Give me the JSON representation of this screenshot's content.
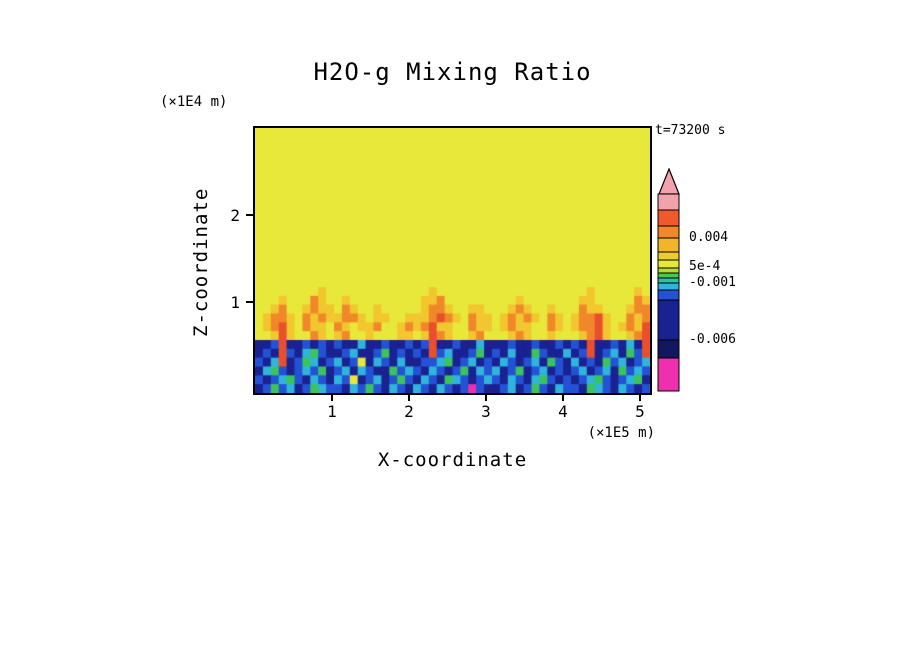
{
  "title": "H2O-g Mixing Ratio",
  "time_label": "t=73200 s",
  "axes": {
    "x_label": "X-coordinate",
    "x_unit": "(×1E5 m)",
    "x_ticks": [
      "1",
      "2",
      "3",
      "4",
      "5"
    ],
    "z_label": "Z-coordinate",
    "z_unit": "(×1E4 m)",
    "z_ticks": [
      "2",
      "1"
    ]
  },
  "chart_data": {
    "type": "heatmap",
    "title": "H2O-g Mixing Ratio",
    "annotation": "t=73200 s",
    "value_name": "H2O-g mixing ratio anomaly",
    "x": {
      "label": "X-coordinate",
      "unit": "1E5 m",
      "range": [
        0,
        5.1
      ],
      "ticks": [
        1,
        2,
        3,
        4,
        5
      ]
    },
    "z": {
      "label": "Z-coordinate",
      "unit": "1E4 m",
      "range": [
        0,
        3.0
      ],
      "ticks": [
        1,
        2
      ]
    },
    "palette": {
      "Y": "#e8e83a",
      "D": "#f2c62e",
      "O": "#f0882a",
      "R": "#ea4f2c",
      "N": "#1a2191",
      "B": "#2353d4",
      "C": "#2fb4dc",
      "G": "#3cc45c",
      "M": "#ee2fae"
    },
    "palette_values_approx": {
      "Y": "5e-4",
      "D": "1e-3",
      "O": "0.003",
      "R": "0.005",
      "N": "-0.004",
      "B": "-0.002",
      "C": "-0.001",
      "G": "-5e-4",
      "M": "-0.008"
    },
    "grid_note": "rows top-to-bottom (z=3.0 to 0), each row = 5 chunks of 10 chars = 50 columns (x=0 to 5.1); chars key palette",
    "grid_rows": [
      [
        "YYYYYYYYYY",
        "YYYYYYYYYY",
        "YYYYYYYYYY",
        "YYYYYYYYYY",
        "YYYYYYYYYY"
      ],
      [
        "YYYYYYYYYY",
        "YYYYYYYYYY",
        "YYYYYYYYYY",
        "YYYYYYYYYY",
        "YYYYYYYYYY"
      ],
      [
        "YYYYYYYYYY",
        "YYYYYYYYYY",
        "YYYYYYYYYY",
        "YYYYYYYYYY",
        "YYYYYYYYYY"
      ],
      [
        "YYYYYYYYYY",
        "YYYYYYYYYY",
        "YYYYYYYYYY",
        "YYYYYYYYYY",
        "YYYYYYYYYY"
      ],
      [
        "YYYYYYYYYY",
        "YYYYYYYYYY",
        "YYYYYYYYYY",
        "YYYYYYYYYY",
        "YYYYYYYYYY"
      ],
      [
        "YYYYYYYYYY",
        "YYYYYYYYYY",
        "YYYYYYYYYY",
        "YYYYYYYYYY",
        "YYYYYYYYYY"
      ],
      [
        "YYYYYYYYYY",
        "YYYYYYYYYY",
        "YYYYYYYYYY",
        "YYYYYYYYYY",
        "YYYYYYYYYY"
      ],
      [
        "YYYYYYYYYY",
        "YYYYYYYYYY",
        "YYYYYYYYYY",
        "YYYYYYYYYY",
        "YYYYYYYYYY"
      ],
      [
        "YYYYYYYYYY",
        "YYYYYYYYYY",
        "YYYYYYYYYY",
        "YYYYYYYYYY",
        "YYYYYYYYYY"
      ],
      [
        "YYYYYYYYYY",
        "YYYYYYYYYY",
        "YYYYYYYYYY",
        "YYYYYYYYYY",
        "YYYYYYYYYY"
      ],
      [
        "YYYYYYYYYY",
        "YYYYYYYYYY",
        "YYYYYYYYYY",
        "YYYYYYYYYY",
        "YYYYYYYYYY"
      ],
      [
        "YYYYYYYYYY",
        "YYYYYYYYYY",
        "YYYYYYYYYY",
        "YYYYYYYYYY",
        "YYYYYYYYYY"
      ],
      [
        "YYYYYYYYYY",
        "YYYYYYYYYY",
        "YYYYYYYYYY",
        "YYYYYYYYYY",
        "YYYYYYYYYY"
      ],
      [
        "YYYYYYYYYY",
        "YYYYYYYYYY",
        "YYYYYYYYYY",
        "YYYYYYYYYY",
        "YYYYYYYYYY"
      ],
      [
        "YYYYYYYYYY",
        "YYYYYYYYYY",
        "YYYYYYYYYY",
        "YYYYYYYYYY",
        "YYYYYYYYYY"
      ],
      [
        "YYYYYYYYYY",
        "YYYYYYYYYY",
        "YYYYYYYYYY",
        "YYYYYYYYYY",
        "YYYYYYYYYY"
      ],
      [
        "YYYYYYYYYY",
        "YYYYYYYYYY",
        "YYYYYYYYYY",
        "YYYYYYYYYY",
        "YYYYYYYYYY"
      ],
      [
        "YYYYYYYYYY",
        "YYYYYYYYYY",
        "YYYYYYYYYY",
        "YYYYYYYYYY",
        "YYYYYYYYYY"
      ],
      [
        "YYYYYYYYDY",
        "YYYYYYYYYY",
        "YYDYYYYYYY",
        "YYYYYYYYYY",
        "YYDYYYYYDY"
      ],
      [
        "YYYDYYYODY",
        "YDYYYYYYYY",
        "YDDOYYYYYY",
        "YYYDYYYYYY",
        "YDDYYYYYOD"
      ],
      [
        "YYDOYYDODD",
        "YODYYDYYYY",
        "YDOODYYDDY",
        "YYDODYYDYY",
        "YODDYYYDOO"
      ],
      [
        "YDOODYODOD",
        "DOODYDDYYD",
        "DDORODYODD",
        "YDODODYODY",
        "DOORDYYODO"
      ],
      [
        "YDORDYODDY",
        "ODYDDOYYDO",
        "DORDDYYODD",
        "YDODDYYODY",
        "DOORDYDODR"
      ],
      [
        "YYDRDYYODY",
        "DOYYDYYYDD",
        "YDRODYYDOY",
        "YYDODYYDYY",
        "YDORDYYDOR"
      ],
      [
        "NNBRNNBNBN",
        "BNNCNNBNNB",
        "NBRNNBNNCN",
        "NNBNNBNNBN",
        "BNRNNBNCNR"
      ],
      [
        "NBNRBNCGBN",
        "NBCNNBGNBN",
        "BNRBCNNBGN",
        "BNCNNGBNNC",
        "NBRNBCNGBR"
      ],
      [
        "BNCRNBGCNB",
        "CNBYNCBNCN",
        "NBBCGNBCNB",
        "NCBNBCNGBN",
        "CNBNGBCNBC"
      ],
      [
        "NCGBNBCBGN",
        "BCNCBNNGBC",
        "BNCBNBGNCB",
        "CNBGNBCNBN",
        "BCNBCNGBCB"
      ],
      [
        "BNBCGBNCBN",
        "CBYNBCNBGB",
        "NCBNGCBNBC",
        "BNCBNCGBNB",
        "NBCGBNBCGN"
      ],
      [
        "NBGBCNBGCB",
        "BNCBGBNCBN",
        "CBNCBNBMBN",
        "NBCNBGBNCB",
        "BNGCBNCBNB"
      ]
    ],
    "colorbar": {
      "arrow_color": "#f2a2aa",
      "segments": [
        {
          "color": "#f2a2aa",
          "height": 16
        },
        {
          "color": "#ee5a2e",
          "height": 16
        },
        {
          "color": "#f0882a",
          "height": 12
        },
        {
          "color": "#f2b42a",
          "height": 14
        },
        {
          "color": "#eace2e",
          "height": 8
        },
        {
          "color": "#e8e83a",
          "height": 8
        },
        {
          "color": "#b4dc34",
          "height": 5
        },
        {
          "color": "#48c84c",
          "height": 5
        },
        {
          "color": "#2cc49c",
          "height": 5
        },
        {
          "color": "#2fb4dc",
          "height": 7
        },
        {
          "color": "#2353d4",
          "height": 10
        },
        {
          "color": "#1a2191",
          "height": 40
        },
        {
          "color": "#12175e",
          "height": 18
        },
        {
          "color": "#ee2fae",
          "height": 33
        }
      ],
      "ticks": [
        {
          "label": "0.004"
        },
        {
          "label": "5e-4"
        },
        {
          "label": "-0.001"
        },
        {
          "label": "-0.006"
        }
      ]
    }
  }
}
